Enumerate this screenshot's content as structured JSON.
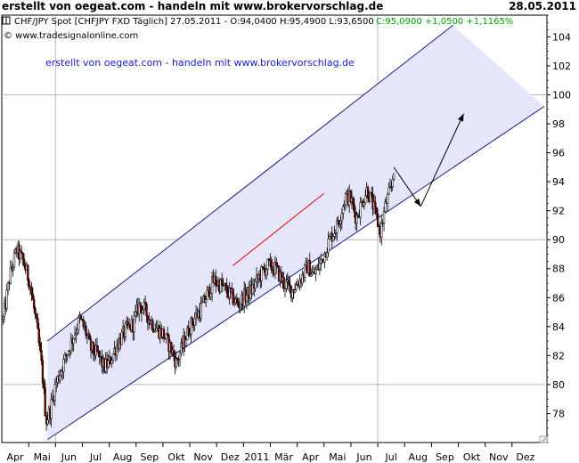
{
  "header": {
    "title": "erstellt von oegeat.com - handeln mit www.brokervorschlag.de",
    "date": "28.05.2011"
  },
  "info": {
    "symbol_text": "CHF/JPY Spot [CHFJPY FXD  Täglich] 27.05.2011 - O:94,0400 H:95,4900 L:93,6500",
    "close_text": "C:95,0900 +1,0500 +1,1165%",
    "source_text": "© www.tradesignalonline.com",
    "watermark_text": "erstellt von oegeat.com - handeln mit www.brokervorschlag.de"
  },
  "colors": {
    "background": "#ffffff",
    "candle_line": "#000000",
    "candle_down": "#7a0000",
    "channel_fill": "#e6e6fb",
    "channel_line": "#1a1a8c",
    "support_line": "#e00000",
    "arrow": "#000000",
    "close_text": "#00a000",
    "watermark": "#1a1acc"
  },
  "chart_data": {
    "type": "candlestick",
    "title": "CHF/JPY Spot [CHFJPY FXD  Täglich]",
    "x_ticks": [
      "Apr",
      "Mai",
      "Jun",
      "Jul",
      "Aug",
      "Sep",
      "Okt",
      "Nov",
      "Dez",
      "2011",
      "Mär",
      "Apr",
      "Mai",
      "Jun",
      "Jul",
      "Aug",
      "Sep",
      "Okt",
      "Nov",
      "Dez"
    ],
    "y_ticks": [
      78,
      80,
      82,
      84,
      86,
      88,
      90,
      92,
      94,
      96,
      98,
      100,
      102,
      104
    ],
    "ylim": [
      76.0,
      105.5
    ],
    "x_range_months": [
      0,
      20.3
    ],
    "grid_lines": {
      "horizontal": [
        80,
        90,
        100
      ],
      "vertical": [
        2.0,
        14.0
      ]
    },
    "close_path": [
      [
        0.05,
        84.5
      ],
      [
        0.3,
        87.5
      ],
      [
        0.55,
        89.3
      ],
      [
        0.8,
        88.5
      ],
      [
        1.05,
        87.0
      ],
      [
        1.3,
        84.0
      ],
      [
        1.5,
        81.0
      ],
      [
        1.65,
        77.5
      ],
      [
        1.8,
        78.2
      ],
      [
        2.0,
        80.0
      ],
      [
        2.3,
        81.5
      ],
      [
        2.6,
        83.0
      ],
      [
        2.9,
        84.5
      ],
      [
        3.1,
        83.8
      ],
      [
        3.3,
        82.5
      ],
      [
        3.6,
        82.0
      ],
      [
        3.8,
        81.2
      ],
      [
        4.0,
        81.5
      ],
      [
        4.3,
        82.8
      ],
      [
        4.6,
        83.7
      ],
      [
        4.9,
        84.2
      ],
      [
        5.1,
        85.5
      ],
      [
        5.3,
        85.2
      ],
      [
        5.5,
        84.5
      ],
      [
        5.7,
        84.0
      ],
      [
        6.0,
        83.5
      ],
      [
        6.3,
        82.5
      ],
      [
        6.5,
        81.5
      ],
      [
        6.8,
        83.0
      ],
      [
        7.0,
        84.0
      ],
      [
        7.4,
        85.2
      ],
      [
        7.6,
        86.0
      ],
      [
        7.9,
        87.2
      ],
      [
        8.2,
        86.8
      ],
      [
        8.5,
        86.2
      ],
      [
        8.8,
        85.5
      ],
      [
        9.0,
        86.0
      ],
      [
        9.3,
        86.5
      ],
      [
        9.6,
        87.5
      ],
      [
        9.9,
        88.2
      ],
      [
        10.2,
        88.0
      ],
      [
        10.5,
        87.0
      ],
      [
        10.8,
        86.5
      ],
      [
        11.1,
        87.2
      ],
      [
        11.4,
        88.2
      ],
      [
        11.6,
        87.5
      ],
      [
        11.9,
        88.5
      ],
      [
        12.2,
        90.0
      ],
      [
        12.5,
        91.0
      ],
      [
        12.8,
        93.0
      ],
      [
        13.0,
        92.8
      ],
      [
        13.2,
        91.5
      ],
      [
        13.4,
        92.5
      ],
      [
        13.6,
        93.5
      ],
      [
        13.8,
        92.5
      ],
      [
        14.1,
        90.5
      ],
      [
        14.3,
        92.5
      ],
      [
        14.5,
        93.5
      ],
      [
        14.6,
        95.0
      ]
    ],
    "channel": {
      "upper": [
        [
          1.7,
          83.0
        ],
        [
          16.8,
          104.8
        ]
      ],
      "lower": [
        [
          1.7,
          76.2
        ],
        [
          20.2,
          99.2
        ]
      ]
    },
    "support_line": [
      [
        8.6,
        88.2
      ],
      [
        12.0,
        93.2
      ]
    ],
    "arrows": [
      {
        "from": [
          14.6,
          95.0
        ],
        "to": [
          15.6,
          92.3
        ]
      },
      {
        "from": [
          15.6,
          92.3
        ],
        "to": [
          17.2,
          98.7
        ]
      }
    ]
  }
}
